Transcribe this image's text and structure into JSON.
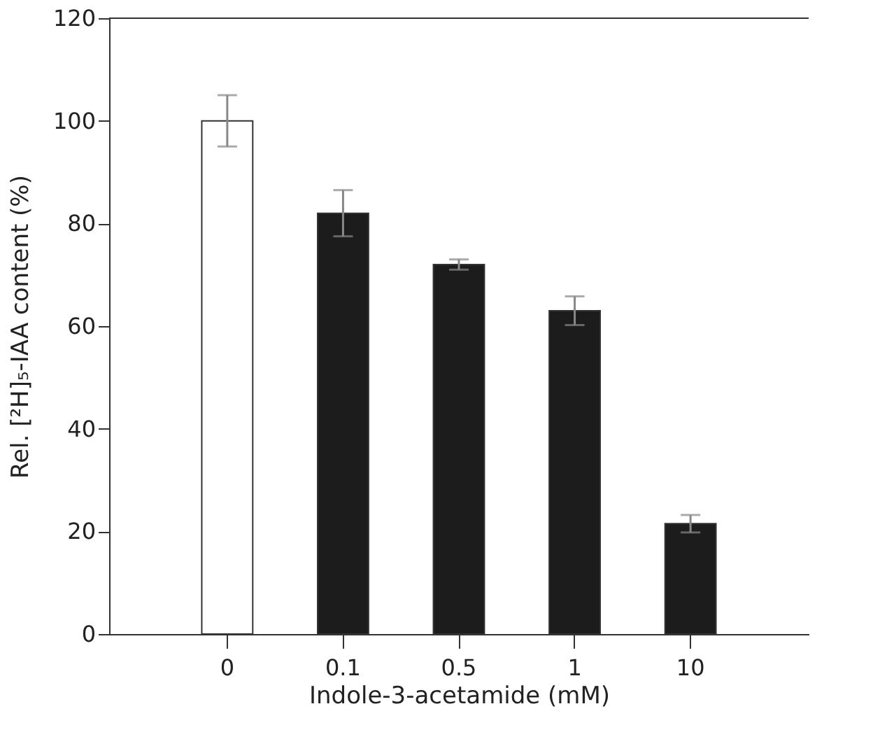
{
  "chart_data": {
    "type": "bar",
    "xlabel": "Indole-3-acetamide (mM)",
    "ylabel": "Rel. [²H]₅-IAA content (%)",
    "categories": [
      "0",
      "0.1",
      "0.5",
      "1",
      "10"
    ],
    "values": [
      100,
      82,
      72,
      63,
      21.5
    ],
    "errors": [
      5,
      4.5,
      1,
      2.8,
      1.7
    ],
    "colors": [
      "#ffffff",
      "#1c1c1c",
      "#1c1c1c",
      "#1c1c1c",
      "#1c1c1c"
    ],
    "ylim": [
      0,
      120
    ],
    "yticks": [
      0,
      20,
      40,
      60,
      80,
      100,
      120
    ],
    "grid": false
  }
}
